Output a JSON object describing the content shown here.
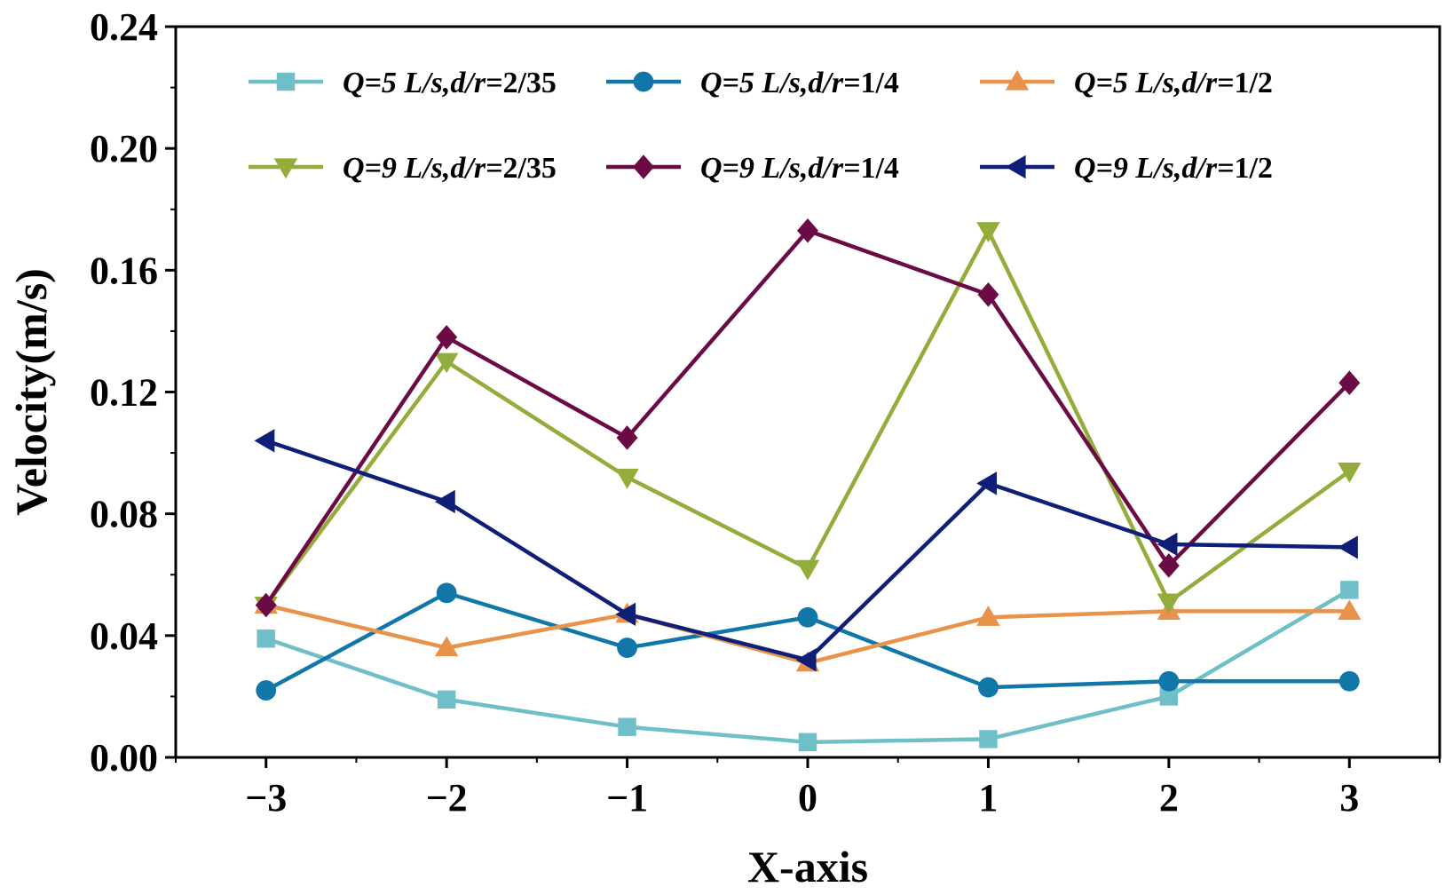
{
  "chart_data": {
    "type": "line",
    "title": "",
    "xlabel": "X-axis",
    "ylabel": "Velocity(m/s)",
    "x": [
      -3,
      -2,
      -1,
      0,
      1,
      2,
      3
    ],
    "x_tick_labels": [
      "−3",
      "−2",
      "−1",
      "0",
      "1",
      "2",
      "3"
    ],
    "xlim": [
      -3.5,
      3.5
    ],
    "ylim": [
      0,
      0.24
    ],
    "y_ticks": [
      0,
      0.04,
      0.08,
      0.12,
      0.16,
      0.2,
      0.24
    ],
    "y_tick_labels": [
      "0.00",
      "0.04",
      "0.08",
      "0.12",
      "0.16",
      "0.20",
      "0.24"
    ],
    "grid": false,
    "legend_position": "top",
    "series": [
      {
        "name": "Q=5 L/s,d/r=2/35",
        "name_parts": [
          "Q=5 L/s,d/r=",
          "2/35"
        ],
        "color": "#6fbfc8",
        "marker": "square",
        "values": [
          0.039,
          0.019,
          0.01,
          0.005,
          0.006,
          0.02,
          0.055
        ]
      },
      {
        "name": "Q=5 L/s,d/r=1/4",
        "name_parts": [
          "Q=5 L/s,d/r=",
          "1/4"
        ],
        "color": "#1177a8",
        "marker": "circle",
        "values": [
          0.022,
          0.054,
          0.036,
          0.046,
          0.023,
          0.025,
          0.025
        ]
      },
      {
        "name": "Q=5 L/s,d/r=1/2",
        "name_parts": [
          "Q=5 L/s,d/r=",
          "1/2"
        ],
        "color": "#e8924a",
        "marker": "triangle-up",
        "values": [
          0.05,
          0.036,
          0.047,
          0.031,
          0.046,
          0.048,
          0.048
        ]
      },
      {
        "name": "Q=9 L/s,d/r=2/35",
        "name_parts": [
          "Q=9 L/s,d/r=",
          "2/35"
        ],
        "color": "#93ad3c",
        "marker": "triangle-down",
        "values": [
          0.05,
          0.13,
          0.092,
          0.062,
          0.173,
          0.051,
          0.094
        ]
      },
      {
        "name": "Q=9 L/s,d/r=1/4",
        "name_parts": [
          "Q=9 L/s,d/r=",
          "1/4"
        ],
        "color": "#6b0b45",
        "marker": "diamond",
        "values": [
          0.05,
          0.138,
          0.105,
          0.173,
          0.152,
          0.063,
          0.123
        ]
      },
      {
        "name": "Q=9 L/s,d/r=1/2",
        "name_parts": [
          "Q=9 L/s,d/r=",
          "1/2"
        ],
        "color": "#0f1f78",
        "marker": "triangle-left",
        "values": [
          0.104,
          0.084,
          0.047,
          0.032,
          0.09,
          0.07,
          0.069
        ]
      }
    ]
  }
}
